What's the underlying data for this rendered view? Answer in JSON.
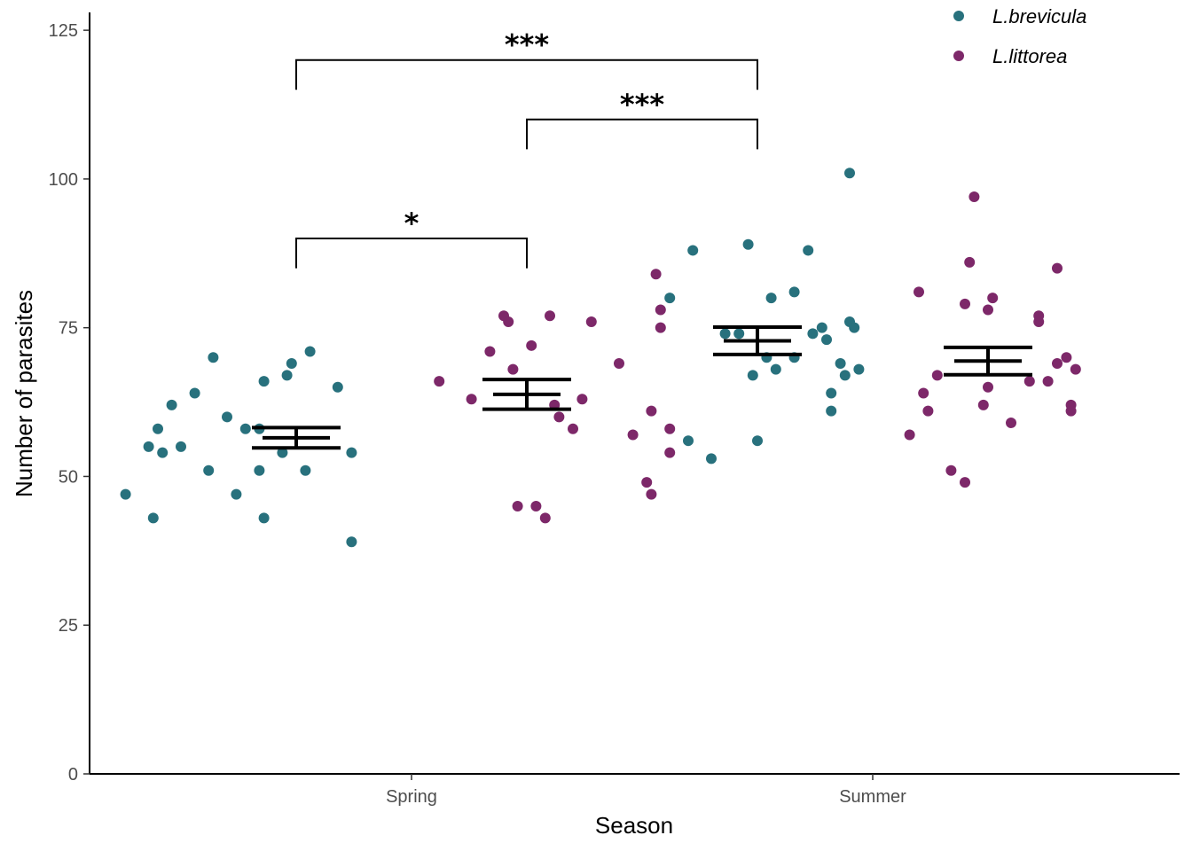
{
  "chart_data": {
    "type": "scatter",
    "title": "",
    "xlabel": "Season",
    "ylabel": "Number of parasites",
    "categories": [
      "Spring",
      "Summer"
    ],
    "ylim": [
      0,
      128
    ],
    "yticks": [
      0,
      25,
      50,
      75,
      100,
      125
    ],
    "grid": false,
    "legend": {
      "placement": "top-right"
    },
    "colors": {
      "L.brevicula": "#28717d",
      "L.littorea": "#7d2869",
      "summary": "#000000"
    },
    "series": [
      {
        "name": "L.brevicula",
        "season": "Spring",
        "mean": 56.5,
        "se": [
          54.8,
          58.2
        ],
        "points": [
          {
            "x": -0.62,
            "y": 47
          },
          {
            "x": -0.56,
            "y": 43
          },
          {
            "x": -0.57,
            "y": 55
          },
          {
            "x": -0.55,
            "y": 58
          },
          {
            "x": -0.54,
            "y": 54
          },
          {
            "x": -0.52,
            "y": 62
          },
          {
            "x": -0.5,
            "y": 55
          },
          {
            "x": -0.47,
            "y": 64
          },
          {
            "x": -0.44,
            "y": 51
          },
          {
            "x": -0.43,
            "y": 70
          },
          {
            "x": -0.4,
            "y": 60
          },
          {
            "x": -0.38,
            "y": 47
          },
          {
            "x": -0.36,
            "y": 58
          },
          {
            "x": -0.33,
            "y": 58
          },
          {
            "x": -0.33,
            "y": 51
          },
          {
            "x": -0.32,
            "y": 43
          },
          {
            "x": -0.32,
            "y": 66
          },
          {
            "x": -0.28,
            "y": 54
          },
          {
            "x": -0.27,
            "y": 67
          },
          {
            "x": -0.26,
            "y": 69
          },
          {
            "x": -0.23,
            "y": 51
          },
          {
            "x": -0.22,
            "y": 71
          },
          {
            "x": -0.16,
            "y": 65
          },
          {
            "x": -0.13,
            "y": 54
          },
          {
            "x": -0.13,
            "y": 39
          }
        ]
      },
      {
        "name": "L.littorea",
        "season": "Spring",
        "mean": 63.8,
        "se": [
          61.3,
          66.3
        ],
        "points": [
          {
            "x": 0.06,
            "y": 66
          },
          {
            "x": 0.13,
            "y": 63
          },
          {
            "x": 0.17,
            "y": 71
          },
          {
            "x": 0.2,
            "y": 77
          },
          {
            "x": 0.21,
            "y": 76
          },
          {
            "x": 0.22,
            "y": 68
          },
          {
            "x": 0.23,
            "y": 45
          },
          {
            "x": 0.26,
            "y": 72
          },
          {
            "x": 0.27,
            "y": 45
          },
          {
            "x": 0.29,
            "y": 43
          },
          {
            "x": 0.3,
            "y": 77
          },
          {
            "x": 0.31,
            "y": 62
          },
          {
            "x": 0.32,
            "y": 60
          },
          {
            "x": 0.35,
            "y": 58
          },
          {
            "x": 0.37,
            "y": 63
          },
          {
            "x": 0.39,
            "y": 76
          },
          {
            "x": 0.45,
            "y": 69
          },
          {
            "x": 0.48,
            "y": 57
          },
          {
            "x": 0.51,
            "y": 49
          },
          {
            "x": 0.52,
            "y": 61
          },
          {
            "x": 0.52,
            "y": 47
          },
          {
            "x": 0.53,
            "y": 84
          },
          {
            "x": 0.54,
            "y": 78
          },
          {
            "x": 0.54,
            "y": 75
          },
          {
            "x": 0.56,
            "y": 58
          },
          {
            "x": 0.56,
            "y": 54
          }
        ]
      },
      {
        "name": "L.brevicula",
        "season": "Summer",
        "mean": 72.8,
        "se": [
          70.5,
          75.1
        ],
        "points": [
          {
            "x": -0.44,
            "y": 80
          },
          {
            "x": -0.4,
            "y": 56
          },
          {
            "x": -0.39,
            "y": 88
          },
          {
            "x": -0.35,
            "y": 53
          },
          {
            "x": -0.32,
            "y": 74
          },
          {
            "x": -0.29,
            "y": 74
          },
          {
            "x": -0.27,
            "y": 89
          },
          {
            "x": -0.26,
            "y": 67
          },
          {
            "x": -0.25,
            "y": 56
          },
          {
            "x": -0.23,
            "y": 70
          },
          {
            "x": -0.22,
            "y": 80
          },
          {
            "x": -0.21,
            "y": 68
          },
          {
            "x": -0.17,
            "y": 81
          },
          {
            "x": -0.17,
            "y": 70
          },
          {
            "x": -0.14,
            "y": 88
          },
          {
            "x": -0.13,
            "y": 74
          },
          {
            "x": -0.11,
            "y": 75
          },
          {
            "x": -0.1,
            "y": 73
          },
          {
            "x": -0.09,
            "y": 64
          },
          {
            "x": -0.09,
            "y": 61
          },
          {
            "x": -0.07,
            "y": 69
          },
          {
            "x": -0.06,
            "y": 67
          },
          {
            "x": -0.05,
            "y": 76
          },
          {
            "x": -0.05,
            "y": 101
          },
          {
            "x": -0.04,
            "y": 75
          },
          {
            "x": -0.03,
            "y": 68
          }
        ]
      },
      {
        "name": "L.littorea",
        "season": "Summer",
        "mean": 69.4,
        "se": [
          67.1,
          71.7
        ],
        "points": [
          {
            "x": 0.08,
            "y": 57
          },
          {
            "x": 0.1,
            "y": 81
          },
          {
            "x": 0.11,
            "y": 64
          },
          {
            "x": 0.12,
            "y": 61
          },
          {
            "x": 0.14,
            "y": 67
          },
          {
            "x": 0.17,
            "y": 51
          },
          {
            "x": 0.2,
            "y": 49
          },
          {
            "x": 0.2,
            "y": 79
          },
          {
            "x": 0.21,
            "y": 86
          },
          {
            "x": 0.22,
            "y": 97
          },
          {
            "x": 0.24,
            "y": 62
          },
          {
            "x": 0.25,
            "y": 65
          },
          {
            "x": 0.25,
            "y": 78
          },
          {
            "x": 0.26,
            "y": 80
          },
          {
            "x": 0.3,
            "y": 59
          },
          {
            "x": 0.34,
            "y": 66
          },
          {
            "x": 0.36,
            "y": 76
          },
          {
            "x": 0.36,
            "y": 77
          },
          {
            "x": 0.38,
            "y": 66
          },
          {
            "x": 0.4,
            "y": 69
          },
          {
            "x": 0.4,
            "y": 85
          },
          {
            "x": 0.42,
            "y": 70
          },
          {
            "x": 0.43,
            "y": 62
          },
          {
            "x": 0.43,
            "y": 61
          },
          {
            "x": 0.44,
            "y": 68
          }
        ]
      }
    ],
    "significance": [
      {
        "label": "***",
        "from": {
          "season": "Spring",
          "offset": -0.25
        },
        "to": {
          "season": "Summer",
          "offset": -0.25
        },
        "y_base": 115,
        "y_top": 120
      },
      {
        "label": "***",
        "from": {
          "season": "Spring",
          "offset": 0.25
        },
        "to": {
          "season": "Summer",
          "offset": -0.25
        },
        "y_base": 105,
        "y_top": 110
      },
      {
        "label": "*",
        "from": {
          "season": "Spring",
          "offset": -0.25
        },
        "to": {
          "season": "Spring",
          "offset": 0.25
        },
        "y_base": 85,
        "y_top": 90
      }
    ]
  }
}
